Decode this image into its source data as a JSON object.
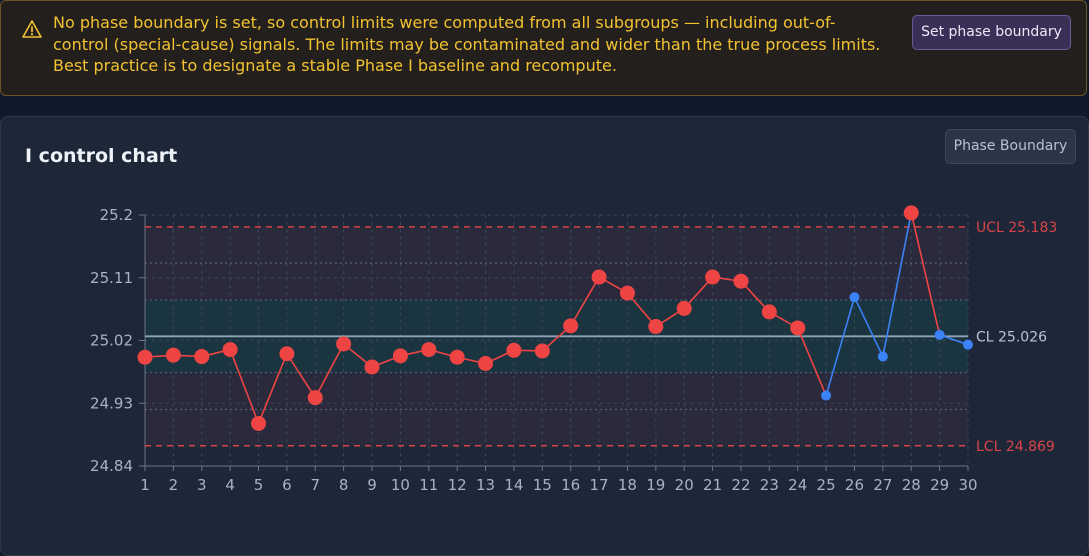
{
  "banner": {
    "message": "No phase boundary is set, so control limits were computed from all subgroups — including out-of-control (special-cause) signals. The limits may be contaminated and wider than the true process limits. Best practice is to designate a stable Phase I baseline and recompute.",
    "action_label": "Set phase boundary",
    "icon": "warning-triangle-icon",
    "color": "#f2c230"
  },
  "card": {
    "title": "I control chart",
    "phase_button_label": "Phase Boundary"
  },
  "chart_data": {
    "type": "line",
    "title": "I control chart",
    "x": [
      1,
      2,
      3,
      4,
      5,
      6,
      7,
      8,
      9,
      10,
      11,
      12,
      13,
      14,
      15,
      16,
      17,
      18,
      19,
      20,
      21,
      22,
      23,
      24,
      25,
      26,
      27,
      28,
      29,
      30
    ],
    "values": [
      24.996,
      24.999,
      24.997,
      25.007,
      24.901,
      25.001,
      24.938,
      25.015,
      24.982,
      24.998,
      25.007,
      24.996,
      24.987,
      25.006,
      25.005,
      25.041,
      25.111,
      25.088,
      25.04,
      25.066,
      25.111,
      25.105,
      25.061,
      25.038,
      24.941,
      25.082,
      24.997,
      25.203,
      25.028,
      25.014
    ],
    "out_of_control": [
      true,
      true,
      true,
      true,
      true,
      true,
      true,
      true,
      true,
      true,
      true,
      true,
      true,
      true,
      true,
      true,
      true,
      true,
      true,
      true,
      true,
      true,
      true,
      true,
      false,
      false,
      false,
      true,
      false,
      false
    ],
    "xlim": [
      1,
      30
    ],
    "ylim": [
      24.84,
      25.2
    ],
    "y_ticks": [
      "24.84",
      "24.93",
      "25.02",
      "25.11",
      "25.2"
    ],
    "x_ticks": [
      "1",
      "2",
      "3",
      "4",
      "5",
      "6",
      "7",
      "8",
      "9",
      "10",
      "11",
      "12",
      "13",
      "14",
      "15",
      "16",
      "17",
      "18",
      "19",
      "20",
      "21",
      "22",
      "23",
      "24",
      "25",
      "26",
      "27",
      "28",
      "29",
      "30"
    ],
    "ucl": 25.183,
    "cl": 25.026,
    "lcl": 24.869,
    "zone_1sigma": [
      24.974,
      25.078
    ],
    "zone_2sigma": [
      24.921,
      25.131
    ],
    "ucl_label": "UCL 25.183",
    "cl_label": "CL 25.026",
    "lcl_label": "LCL 24.869",
    "grid": true,
    "colors": {
      "signal": "#ef4444",
      "normal": "#3b82f6",
      "limit": "#d9434a",
      "center": "#8fa2b6",
      "axis_text": "#a7b3c3",
      "zone_inner": "#1a3440",
      "zone_outer": "#2a2a3c"
    }
  }
}
